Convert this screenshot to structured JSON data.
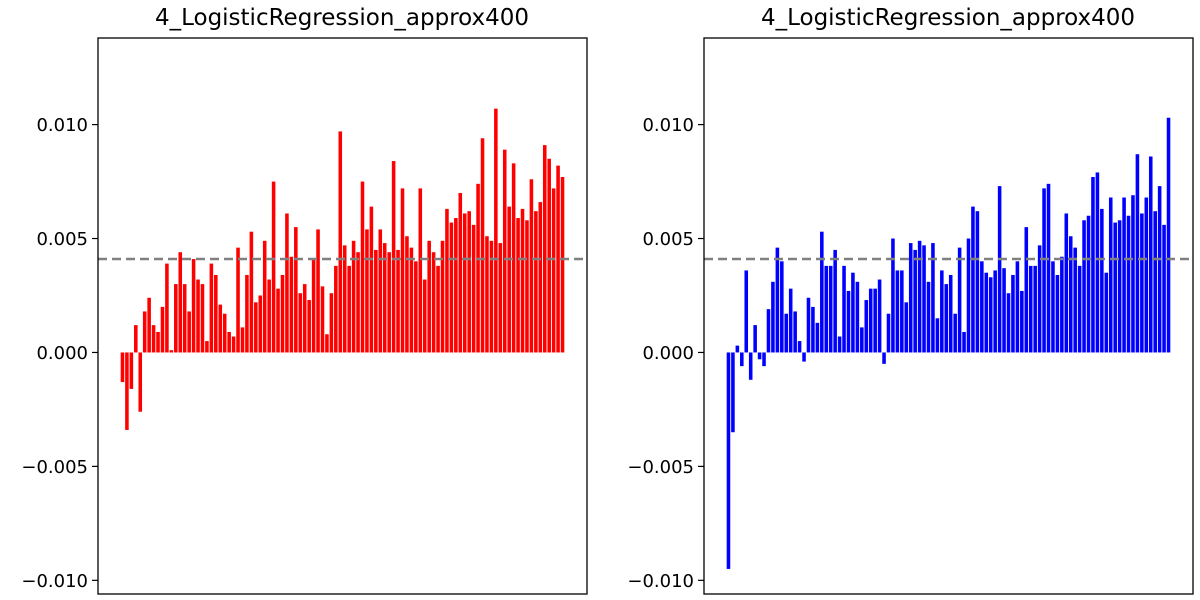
{
  "chart_data": [
    {
      "type": "bar",
      "title": "4_LogisticRegression_approx400",
      "xlabel": "",
      "ylabel": "",
      "ylim": [
        -0.0106,
        0.0138
      ],
      "yticks": [
        -0.01,
        -0.005,
        0.0,
        0.005,
        0.01
      ],
      "ytick_labels": [
        "−0.010",
        "−0.005",
        "0.000",
        "0.005",
        "0.010"
      ],
      "xticks": [],
      "grid": false,
      "bar_color": "#ff0000",
      "reference_line": {
        "y": 0.0041,
        "style": "dashed",
        "color": "#808080"
      },
      "values": [
        -0.0013,
        -0.0034,
        -0.0016,
        0.0012,
        -0.0026,
        0.0018,
        0.0024,
        0.0012,
        0.0009,
        0.002,
        0.0039,
        0.0001,
        0.003,
        0.0044,
        0.003,
        0.0018,
        0.0041,
        0.0032,
        0.003,
        0.0005,
        0.0039,
        0.0034,
        0.0021,
        0.0017,
        0.0009,
        0.0007,
        0.0046,
        0.0011,
        0.0034,
        0.0053,
        0.0022,
        0.0025,
        0.0049,
        0.0032,
        0.0075,
        0.0028,
        0.0034,
        0.0061,
        0.0042,
        0.0055,
        0.0026,
        0.003,
        0.0023,
        0.0041,
        0.0054,
        0.0029,
        0.0008,
        0.0026,
        0.0038,
        0.0097,
        0.0047,
        0.0038,
        0.0049,
        0.0044,
        0.0075,
        0.0054,
        0.0064,
        0.0045,
        0.0054,
        0.0048,
        0.0044,
        0.0084,
        0.0045,
        0.0072,
        0.0051,
        0.0046,
        0.004,
        0.0072,
        0.0032,
        0.0049,
        0.0044,
        0.0038,
        0.0049,
        0.0063,
        0.0057,
        0.0059,
        0.007,
        0.0061,
        0.0062,
        0.0056,
        0.0074,
        0.0094,
        0.0051,
        0.0049,
        0.0107,
        0.0048,
        0.0089,
        0.0064,
        0.0083,
        0.0059,
        0.0063,
        0.0058,
        0.0076,
        0.0062,
        0.0066,
        0.0091,
        0.0085,
        0.0072,
        0.0082,
        0.0077
      ]
    },
    {
      "type": "bar",
      "title": "4_LogisticRegression_approx400",
      "xlabel": "",
      "ylabel": "",
      "ylim": [
        -0.0106,
        0.0138
      ],
      "yticks": [
        -0.01,
        -0.005,
        0.0,
        0.005,
        0.01
      ],
      "ytick_labels": [
        "−0.010",
        "−0.005",
        "0.000",
        "0.005",
        "0.010"
      ],
      "xticks": [],
      "grid": false,
      "bar_color": "#0000ff",
      "reference_line": {
        "y": 0.0041,
        "style": "dashed",
        "color": "#808080"
      },
      "values": [
        -0.0095,
        -0.0035,
        0.0003,
        -0.0006,
        0.0036,
        -0.0012,
        0.0012,
        -0.0003,
        -0.0006,
        0.0019,
        0.0031,
        0.0046,
        0.004,
        0.0017,
        0.0028,
        0.0018,
        0.0005,
        -0.0004,
        0.0024,
        0.002,
        0.0013,
        0.0053,
        0.0038,
        0.0038,
        0.0045,
        0.0007,
        0.0038,
        0.0027,
        0.0035,
        0.0031,
        0.0011,
        0.0023,
        0.0028,
        0.0028,
        0.0032,
        -0.0005,
        0.0017,
        0.005,
        0.0036,
        0.0036,
        0.0022,
        0.0048,
        0.0045,
        0.0049,
        0.0047,
        0.0031,
        0.0048,
        0.0015,
        0.0036,
        0.003,
        0.0034,
        0.0017,
        0.0046,
        0.0009,
        0.005,
        0.0064,
        0.0062,
        0.004,
        0.0035,
        0.0033,
        0.0036,
        0.0073,
        0.0037,
        0.0026,
        0.0034,
        0.004,
        0.0027,
        0.0055,
        0.0038,
        0.0038,
        0.0047,
        0.0072,
        0.0074,
        0.004,
        0.0034,
        0.0042,
        0.0061,
        0.0051,
        0.0046,
        0.0038,
        0.0058,
        0.006,
        0.0077,
        0.0079,
        0.0063,
        0.0035,
        0.0068,
        0.0057,
        0.0058,
        0.0068,
        0.006,
        0.0069,
        0.0087,
        0.0061,
        0.0068,
        0.0086,
        0.0062,
        0.0073,
        0.0056,
        0.0103
      ]
    }
  ]
}
